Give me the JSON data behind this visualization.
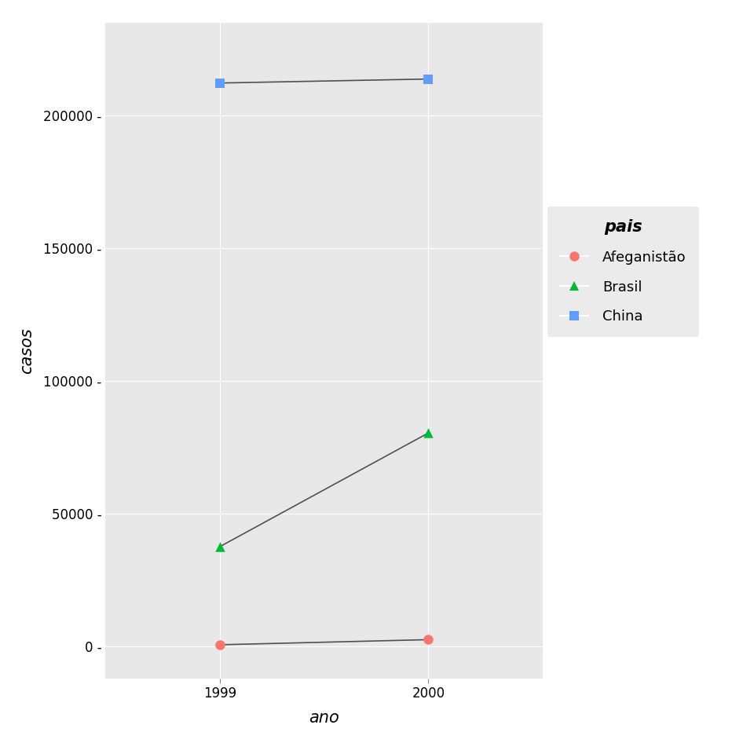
{
  "countries": [
    "Afeganistão",
    "Brasil",
    "China"
  ],
  "years": [
    1999,
    2000
  ],
  "cases": {
    "Afeganistão": [
      745,
      2666
    ],
    "Brasil": [
      37737,
      80488
    ],
    "China": [
      212258,
      213766
    ]
  },
  "colors": {
    "Afeganistão": "#F8766D",
    "Brasil": "#00BA38",
    "China": "#619CFF"
  },
  "markers": {
    "Afeganistão": "o",
    "Brasil": "^",
    "China": "s"
  },
  "line_color": "#505050",
  "panel_bg": "#E8E8E8",
  "outer_bg": "#FFFFFF",
  "ylabel": "casos",
  "xlabel": "ano",
  "legend_title": "pais",
  "yticks": [
    0,
    50000,
    100000,
    150000,
    200000
  ],
  "xticks": [
    1999,
    2000
  ],
  "axis_label_fontsize": 15,
  "tick_fontsize": 12,
  "legend_fontsize": 13,
  "legend_title_fontsize": 15,
  "marker_size": 9,
  "ylim_min": -12000,
  "ylim_max": 235000,
  "xlim_min": 1998.45,
  "xlim_max": 2000.55
}
